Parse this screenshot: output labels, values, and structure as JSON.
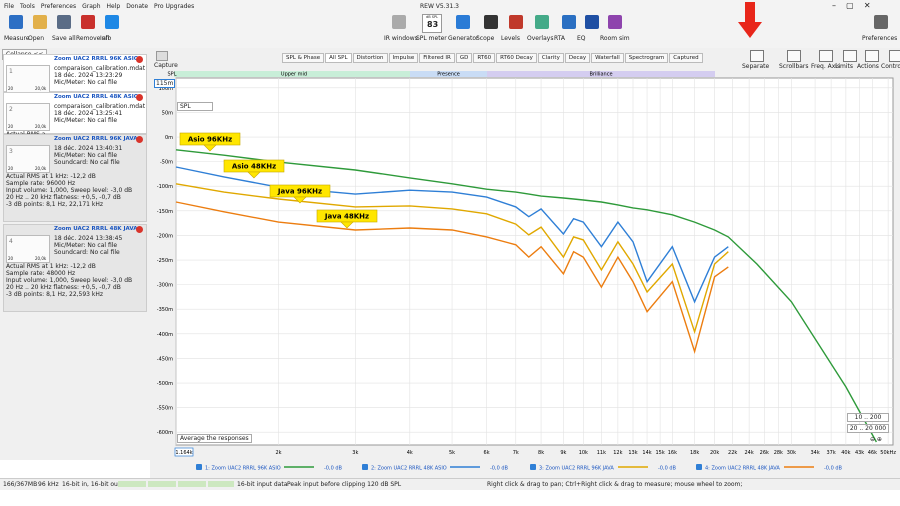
{
  "window": {
    "menu": [
      "File",
      "Tools",
      "Preferences",
      "Graph",
      "Help",
      "Donate",
      "Pro Upgrades"
    ],
    "title": "REW V5.31.3"
  },
  "toolbar": {
    "left": [
      "Measure",
      "Open",
      "Save all",
      "Remove all",
      "Info"
    ],
    "spl_meter_unit": "dB SPL",
    "spl_meter": "83",
    "center": [
      "IR windows",
      "SPL meter",
      "Generator",
      "Scope",
      "Levels",
      "Overlays",
      "RTA",
      "EQ",
      "Room sim"
    ],
    "right": [
      "Preferences"
    ]
  },
  "sidebar": {
    "collapse": "Collapse <<",
    "measurements": [
      {
        "index": "1",
        "name": "Zoom UAC2 RRRL 96K ASIO",
        "lines": [
          "comparaison_calibration.mdat",
          "18 déc. 2024 13:23:29",
          "Mic/Meter: No cal file"
        ],
        "thumb_axis": [
          "20",
          "20,0k"
        ],
        "details": [
          "Actual RMS a"
        ]
      },
      {
        "index": "2",
        "name": "Zoom UAC2 RRRL 48K ASIO",
        "lines": [
          "comparaison_calibration.mdat",
          "18 déc. 2024 13:25:41",
          "Mic/Meter: No cal file"
        ],
        "thumb_axis": [
          "20",
          "20,0k"
        ],
        "details": [
          "Actual RMS a"
        ]
      },
      {
        "index": "3",
        "name": "Zoom UAC2 RRRL 96K JAVA",
        "lines": [
          "18 déc. 2024 13:40:31",
          "Mic/Meter: No cal file",
          "Soundcard: No cal file"
        ],
        "thumb_axis": [
          "20",
          "20,0k"
        ],
        "details": [
          "Actual RMS at 1 kHz: -12,2 dB",
          "Sample rate: 96000 Hz",
          "Input volume: 1,000, Sweep level: -3,0 dB",
          "20 Hz .. 20 kHz flatness: +0,5, -0,7 dB",
          "-3 dB points: 8,1 Hz, 22,171 kHz"
        ]
      },
      {
        "index": "4",
        "name": "Zoom UAC2 RRRL 48K JAVA",
        "lines": [
          "18 déc. 2024 13:38:45",
          "Mic/Meter: No cal file",
          "Soundcard: No cal file"
        ],
        "thumb_axis": [
          "20",
          "20,0k"
        ],
        "details": [
          "Actual RMS at 1 kHz: -12,2 dB",
          "Sample rate: 48000 Hz",
          "Input volume: 1,000, Sweep level: -3,0 dB",
          "20 Hz .. 20 kHz flatness: +0,5, -0,7 dB",
          "-3 dB points: 8,1 Hz, 22,593 kHz"
        ]
      }
    ]
  },
  "graph": {
    "capture": "Capture",
    "tabs": [
      "SPL & Phase",
      "All SPL",
      "Distortion",
      "Impulse",
      "Filtered IR",
      "GD",
      "RT60",
      "RT60 Decay",
      "Clarity",
      "Decay",
      "Waterfall",
      "Spectrogram",
      "Captured"
    ],
    "tools": [
      "Separate",
      "Scrollbars",
      "Freq. Axis",
      "Limits",
      "Actions",
      "Controls"
    ],
    "bands": [
      "SPL",
      "Upper mid",
      "Presence",
      "Brilliance"
    ],
    "measure_select": "SPL",
    "top_label": "115m",
    "average": "Average the responses",
    "ranges": [
      "10 .. 200",
      "20 .. 20 000"
    ]
  },
  "chart_data": {
    "type": "line",
    "log_x": true,
    "grid": true,
    "x": [
      1164,
      1500,
      2000,
      3000,
      4000,
      5000,
      6000,
      7000,
      7500,
      8000,
      9000,
      9500,
      10000,
      11000,
      12000,
      13000,
      14000,
      16000,
      18000,
      20000,
      21500,
      25000,
      30000,
      40000,
      47000
    ],
    "xlim": [
      1164,
      51300
    ],
    "xticks": [
      {
        "value": 1164,
        "label": "1.164k"
      },
      {
        "value": 2000,
        "label": "2k"
      },
      {
        "value": 3000,
        "label": "3k"
      },
      {
        "value": 4000,
        "label": "4k"
      },
      {
        "value": 5000,
        "label": "5k"
      },
      {
        "value": 6000,
        "label": "6k"
      },
      {
        "value": 7000,
        "label": "7k"
      },
      {
        "value": 8000,
        "label": "8k"
      },
      {
        "value": 9000,
        "label": "9k"
      },
      {
        "value": 10000,
        "label": "10k"
      },
      {
        "value": 11000,
        "label": "11k"
      },
      {
        "value": 12000,
        "label": "12k"
      },
      {
        "value": 13000,
        "label": "13k"
      },
      {
        "value": 14000,
        "label": "14k"
      },
      {
        "value": 15000,
        "label": "15k"
      },
      {
        "value": 16000,
        "label": "16k"
      },
      {
        "value": 18000,
        "label": "18k"
      },
      {
        "value": 20000,
        "label": "20k"
      },
      {
        "value": 22000,
        "label": "22k"
      },
      {
        "value": 24000,
        "label": "24k"
      },
      {
        "value": 26000,
        "label": "26k"
      },
      {
        "value": 28000,
        "label": "28k"
      },
      {
        "value": 30000,
        "label": "30k"
      },
      {
        "value": 34000,
        "label": "34k"
      },
      {
        "value": 37000,
        "label": "37k"
      },
      {
        "value": 40000,
        "label": "40k"
      },
      {
        "value": 43000,
        "label": "43k"
      },
      {
        "value": 46000,
        "label": "46k"
      },
      {
        "value": 50000,
        "label": "50kHz"
      }
    ],
    "ylim": [
      -626,
      120
    ],
    "yticks": [
      {
        "value": 100,
        "label": "100m"
      },
      {
        "value": 50,
        "label": "50m"
      },
      {
        "value": 0,
        "label": "0m"
      },
      {
        "value": -50,
        "label": "-50m"
      },
      {
        "value": -100,
        "label": "-100m"
      },
      {
        "value": -150,
        "label": "-150m"
      },
      {
        "value": -200,
        "label": "-200m"
      },
      {
        "value": -250,
        "label": "-250m"
      },
      {
        "value": -300,
        "label": "-300m"
      },
      {
        "value": -350,
        "label": "-350m"
      },
      {
        "value": -400,
        "label": "-400m"
      },
      {
        "value": -450,
        "label": "-450m"
      },
      {
        "value": -500,
        "label": "-500m"
      },
      {
        "value": -550,
        "label": "-550m"
      },
      {
        "value": -600,
        "label": "-600m"
      }
    ],
    "series": [
      {
        "name": "1: Zoom UAC2 RRRL 96K ASIO",
        "offset": "-0,0 dB",
        "color": "#2e9a3a",
        "values": [
          -26,
          -37,
          -51,
          -67,
          -83,
          -95,
          -106,
          -112,
          -116,
          -120,
          -124,
          -126,
          -128,
          -132,
          -138,
          -144,
          -148,
          -158,
          -173,
          -189,
          -203,
          -258,
          -335,
          -508,
          -620
        ]
      },
      {
        "name": "2: Zoom UAC2 RRRL 48K ASIO",
        "offset": "-0,0 dB",
        "color": "#2f7fd6",
        "values": [
          -61,
          -81,
          -102,
          -116,
          -108,
          -112,
          -122,
          -142,
          -162,
          -146,
          -197,
          -166,
          -173,
          -223,
          -173,
          -213,
          -294,
          -223,
          -335,
          -244,
          -223,
          null,
          null,
          null,
          null
        ]
      },
      {
        "name": "3: Zoom UAC2 RRRL 96K JAVA",
        "offset": "-0,0 dB",
        "color": "#e0a800",
        "values": [
          -95,
          -112,
          -126,
          -142,
          -140,
          -146,
          -156,
          -177,
          -199,
          -183,
          -244,
          -203,
          -209,
          -270,
          -213,
          -258,
          -315,
          -258,
          -396,
          -258,
          -233,
          null,
          null,
          null,
          null
        ]
      },
      {
        "name": "4: Zoom UAC2 RRRL 48K JAVA",
        "offset": "-0,0 dB",
        "color": "#ec7d10",
        "values": [
          -132,
          -152,
          -173,
          -189,
          -185,
          -189,
          -203,
          -219,
          -244,
          -223,
          -278,
          -233,
          -244,
          -305,
          -244,
          -294,
          -355,
          -294,
          -436,
          -284,
          -264,
          null,
          null,
          null,
          null
        ]
      }
    ],
    "annotations": [
      "Asio 96KHz",
      "Asio 48KHz",
      "Java 96KHz",
      "Java 48KHz"
    ]
  },
  "status": [
    "166/367MB",
    "96 kHz",
    "16-bit in, 16-bit out",
    "16-bit input data",
    "Peak input before clipping 120 dB SPL",
    "Right click & drag to pan; Ctrl+Right click & drag to measure; mouse wheel to zoom;"
  ]
}
